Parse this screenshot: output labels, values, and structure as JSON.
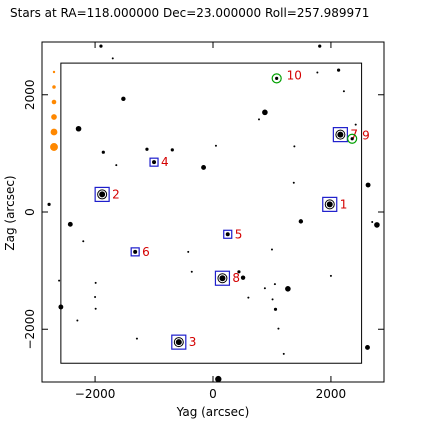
{
  "chart_data": {
    "type": "scatter",
    "title": "Stars at RA=118.000000 Dec=23.000000 Roll=257.989971",
    "xlabel": "Yag (arcsec)",
    "ylabel": "Zag (arcsec)",
    "xlim": [
      -2900,
      2900
    ],
    "ylim": [
      -2900,
      2900
    ],
    "x_ticks": [
      -2000,
      0,
      2000
    ],
    "x_tick_labels": [
      "−2000",
      "0",
      "2000"
    ],
    "y_ticks": [
      -2000,
      0,
      2000
    ],
    "y_tick_labels": [
      "−2000",
      "0",
      "2000"
    ],
    "grid": false,
    "ccd_box": {
      "xmin": -2580,
      "xmax": 2520,
      "ymin": -2580,
      "ymax": 2540
    },
    "colors": {
      "box": "#1e1ecc",
      "label": "#d40000",
      "fid": "#00a000",
      "legend": "#ff8800",
      "star": "#000000"
    },
    "guide_stars": [
      {
        "label": "1",
        "x": 1980,
        "y": 130
      },
      {
        "label": "2",
        "x": -1880,
        "y": 300
      },
      {
        "label": "3",
        "x": -580,
        "y": -2220
      },
      {
        "label": "4",
        "x": -1000,
        "y": 850
      },
      {
        "label": "5",
        "x": 250,
        "y": -380
      },
      {
        "label": "6",
        "x": -1320,
        "y": -680
      },
      {
        "label": "7",
        "x": 2160,
        "y": 1320
      },
      {
        "label": "8",
        "x": 160,
        "y": -1130
      }
    ],
    "fid_lights": [
      {
        "label": "9",
        "x": 2360,
        "y": 1250
      },
      {
        "label": "10",
        "x": 1080,
        "y": 2280
      }
    ],
    "stars": [
      {
        "x": -1900,
        "y": 2830,
        "mag": 10.5
      },
      {
        "x": -1700,
        "y": 2620,
        "mag": 11
      },
      {
        "x": -1520,
        "y": 1930,
        "mag": 10
      },
      {
        "x": -2280,
        "y": 1420,
        "mag": 9.5
      },
      {
        "x": -1860,
        "y": 1020,
        "mag": 10.5
      },
      {
        "x": -1640,
        "y": 800,
        "mag": 11
      },
      {
        "x": -1120,
        "y": 1070,
        "mag": 10.5
      },
      {
        "x": -690,
        "y": 1060,
        "mag": 10.5
      },
      {
        "x": -160,
        "y": 760,
        "mag": 9.8
      },
      {
        "x": 50,
        "y": 1130,
        "mag": 11
      },
      {
        "x": 880,
        "y": 1700,
        "mag": 9.5
      },
      {
        "x": 780,
        "y": 1580,
        "mag": 11
      },
      {
        "x": 1380,
        "y": 1120,
        "mag": 11
      },
      {
        "x": 1810,
        "y": 2830,
        "mag": 10.5
      },
      {
        "x": 2130,
        "y": 2420,
        "mag": 10.5
      },
      {
        "x": 1770,
        "y": 2380,
        "mag": 11
      },
      {
        "x": 2420,
        "y": 1490,
        "mag": 11
      },
      {
        "x": 2630,
        "y": 460,
        "mag": 9.8
      },
      {
        "x": 2700,
        "y": -170,
        "mag": 11
      },
      {
        "x": 2780,
        "y": -220,
        "mag": 9.5
      },
      {
        "x": 1490,
        "y": -160,
        "mag": 10
      },
      {
        "x": 1370,
        "y": 500,
        "mag": 11
      },
      {
        "x": 2220,
        "y": 2060,
        "mag": 11
      },
      {
        "x": -2780,
        "y": 130,
        "mag": 10.5
      },
      {
        "x": -2420,
        "y": -210,
        "mag": 9.8
      },
      {
        "x": -2200,
        "y": -500,
        "mag": 11
      },
      {
        "x": -2580,
        "y": -1620,
        "mag": 9.8
      },
      {
        "x": -2610,
        "y": -1170,
        "mag": 11
      },
      {
        "x": -2300,
        "y": -1850,
        "mag": 11
      },
      {
        "x": -1990,
        "y": -1210,
        "mag": 11
      },
      {
        "x": -2000,
        "y": -1450,
        "mag": 11
      },
      {
        "x": -1990,
        "y": -1650,
        "mag": 11
      },
      {
        "x": -1290,
        "y": -2160,
        "mag": 11
      },
      {
        "x": -420,
        "y": -680,
        "mag": 11
      },
      {
        "x": -360,
        "y": -1020,
        "mag": 11
      },
      {
        "x": 440,
        "y": -1020,
        "mag": 10.5
      },
      {
        "x": 510,
        "y": -1120,
        "mag": 10
      },
      {
        "x": 600,
        "y": -1460,
        "mag": 11
      },
      {
        "x": 880,
        "y": -1300,
        "mag": 11
      },
      {
        "x": 1050,
        "y": -1230,
        "mag": 11
      },
      {
        "x": 1270,
        "y": -1310,
        "mag": 9.5
      },
      {
        "x": 1010,
        "y": -1490,
        "mag": 11
      },
      {
        "x": 1060,
        "y": -1660,
        "mag": 10.5
      },
      {
        "x": 1000,
        "y": -640,
        "mag": 11
      },
      {
        "x": 1110,
        "y": -1990,
        "mag": 11
      },
      {
        "x": 1200,
        "y": -2420,
        "mag": 11
      },
      {
        "x": 2000,
        "y": -1090,
        "mag": 11
      },
      {
        "x": 2620,
        "y": -2310,
        "mag": 9.8
      },
      {
        "x": 90,
        "y": -2850,
        "mag": 9.2
      }
    ],
    "legend_mags": [
      10.0,
      9.0,
      8.0,
      7.0,
      6.0,
      5.0
    ]
  }
}
